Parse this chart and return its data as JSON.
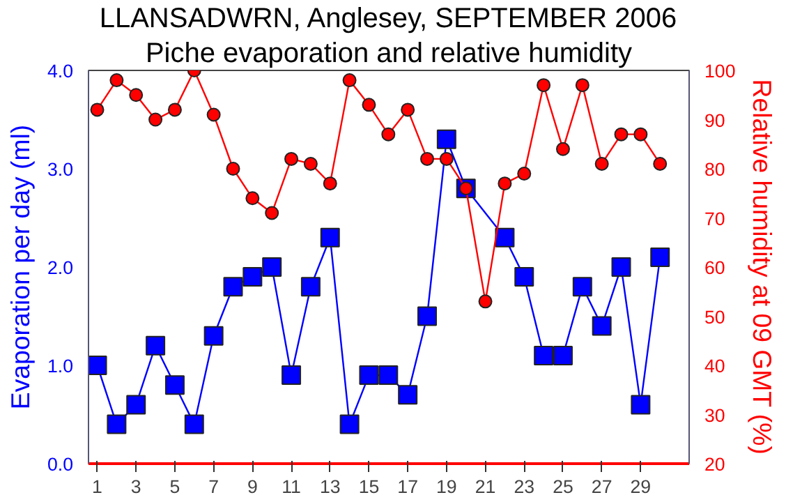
{
  "chart_data": {
    "type": "line",
    "title": "LLANSADWRN, Anglesey, SEPTEMBER 2006",
    "subtitle": "Piche evaporation and relative humidity",
    "ylabel": "Evaporation per day (ml)",
    "y2label": "Relative humidity at 09 GMT (%)",
    "x": [
      1,
      2,
      3,
      4,
      5,
      6,
      7,
      8,
      9,
      10,
      11,
      12,
      13,
      14,
      15,
      16,
      17,
      18,
      19,
      20,
      21,
      22,
      23,
      24,
      25,
      26,
      27,
      28,
      29,
      30
    ],
    "xlim": [
      0.55,
      31.5
    ],
    "xticks": [
      1,
      3,
      5,
      7,
      9,
      11,
      13,
      15,
      17,
      19,
      21,
      23,
      25,
      27,
      29
    ],
    "ylim": [
      0,
      4
    ],
    "yticks": [
      {
        "value": 0,
        "label": "0.0"
      },
      {
        "value": 1,
        "label": "1.0"
      },
      {
        "value": 2,
        "label": "2.0"
      },
      {
        "value": 3,
        "label": "3.0"
      },
      {
        "value": 4,
        "label": "4.0"
      }
    ],
    "y2lim": [
      20,
      100
    ],
    "y2ticks": [
      20,
      30,
      40,
      50,
      60,
      70,
      80,
      90,
      100
    ],
    "grid": false,
    "line_style": "solid",
    "series": [
      {
        "color": "#0000ff",
        "marker": "square",
        "x": [
          1,
          2,
          3,
          4,
          5,
          6,
          7,
          8,
          9,
          10,
          11,
          12,
          13,
          14,
          15,
          16,
          17,
          18,
          19,
          20,
          22,
          23,
          24,
          25,
          26,
          27,
          28,
          29,
          30
        ],
        "values": [
          1.0,
          0.4,
          0.6,
          1.2,
          0.8,
          0.4,
          1.3,
          1.8,
          1.9,
          2.0,
          0.9,
          1.8,
          2.3,
          0.4,
          0.9,
          0.9,
          0.7,
          1.5,
          3.3,
          2.8,
          2.3,
          1.9,
          1.1,
          1.1,
          1.8,
          1.4,
          2.0,
          0.6,
          2.1
        ]
      },
      {
        "color": "#ff0000",
        "marker": "circle",
        "axis": "y2",
        "values": [
          92,
          98,
          95,
          90,
          92,
          100,
          91,
          80,
          74,
          71,
          82,
          81,
          77,
          98,
          93,
          87,
          92,
          82,
          82,
          76,
          53,
          77,
          79,
          97,
          84,
          97,
          81,
          87,
          87,
          81
        ]
      }
    ]
  }
}
